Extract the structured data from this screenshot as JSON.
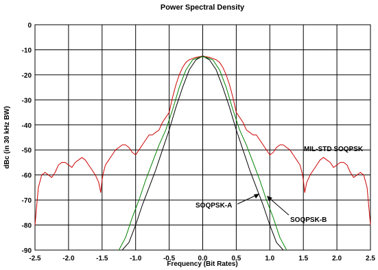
{
  "chart_data": {
    "type": "line",
    "title": "Power Spectral Density",
    "xlabel": "Frequency (Bit Rates)",
    "ylabel": "dBc (in 30 kHz BW)",
    "xlim": [
      -2.5,
      2.5
    ],
    "ylim": [
      -90,
      0
    ],
    "xticks": [
      -2.5,
      -2.0,
      -1.5,
      -1.0,
      -0.5,
      0.0,
      0.5,
      1.0,
      1.5,
      2.0,
      2.5
    ],
    "xtick_labels": [
      "-2.5",
      "-2.0",
      "-1.5",
      "-1.0",
      "-0.5",
      "0.0",
      "0.5",
      "1.0",
      "1.5",
      "2.0",
      "2.5"
    ],
    "yticks": [
      0,
      -10,
      -20,
      -30,
      -40,
      -50,
      -60,
      -70,
      -80,
      -90
    ],
    "ytick_labels": [
      "0",
      "-10",
      "-20",
      "-30",
      "-40",
      "-50",
      "-60",
      "-70",
      "-80",
      "-90"
    ],
    "grid": true,
    "legend": "none",
    "series": [
      {
        "name": "MIL-STD SOQPSK",
        "color": "#cc0000",
        "x": [
          -2.5,
          -2.45,
          -2.4,
          -2.35,
          -2.3,
          -2.25,
          -2.2,
          -2.15,
          -2.1,
          -2.05,
          -2.0,
          -1.95,
          -1.9,
          -1.85,
          -1.8,
          -1.75,
          -1.7,
          -1.65,
          -1.6,
          -1.55,
          -1.52,
          -1.5,
          -1.48,
          -1.45,
          -1.4,
          -1.35,
          -1.3,
          -1.25,
          -1.2,
          -1.15,
          -1.1,
          -1.05,
          -1.0,
          -0.95,
          -0.9,
          -0.85,
          -0.8,
          -0.75,
          -0.7,
          -0.65,
          -0.6,
          -0.55,
          -0.5,
          -0.45,
          -0.4,
          -0.35,
          -0.3,
          -0.25,
          -0.2,
          -0.15,
          -0.1,
          -0.05,
          0.0,
          0.05,
          0.1,
          0.15,
          0.2,
          0.25,
          0.3,
          0.35,
          0.4,
          0.45,
          0.5,
          0.55,
          0.6,
          0.65,
          0.7,
          0.75,
          0.8,
          0.85,
          0.9,
          0.95,
          1.0,
          1.05,
          1.1,
          1.15,
          1.2,
          1.25,
          1.3,
          1.35,
          1.4,
          1.45,
          1.48,
          1.5,
          1.52,
          1.55,
          1.6,
          1.65,
          1.7,
          1.75,
          1.8,
          1.85,
          1.9,
          1.95,
          2.0,
          2.05,
          2.1,
          2.15,
          2.2,
          2.25,
          2.3,
          2.35,
          2.4,
          2.45,
          2.5
        ],
        "y": [
          -80,
          -65,
          -60,
          -59,
          -60,
          -61,
          -59,
          -56,
          -55,
          -55,
          -56,
          -57,
          -55,
          -54,
          -53,
          -54,
          -56,
          -58,
          -60,
          -63,
          -67,
          -62,
          -59,
          -56,
          -54,
          -52,
          -50,
          -49,
          -48,
          -48,
          -49,
          -51,
          -52,
          -50,
          -48,
          -46,
          -44,
          -44,
          -43,
          -42,
          -39,
          -37,
          -35,
          -29,
          -24,
          -20,
          -17,
          -15,
          -14,
          -13.5,
          -13,
          -12.8,
          -12.5,
          -12.8,
          -13,
          -13.5,
          -14,
          -15,
          -17,
          -20,
          -24,
          -29,
          -35,
          -37,
          -39,
          -42,
          -43,
          -44,
          -44,
          -46,
          -48,
          -50,
          -52,
          -51,
          -49,
          -48,
          -48,
          -49,
          -50,
          -52,
          -54,
          -56,
          -59,
          -62,
          -67,
          -63,
          -60,
          -58,
          -56,
          -54,
          -53,
          -54,
          -55,
          -57,
          -56,
          -55,
          -55,
          -56,
          -59,
          -61,
          -60,
          -59,
          -60,
          -65,
          -80
        ]
      },
      {
        "name": "SOQPSK-A",
        "color": "#000000",
        "x": [
          -1.2,
          -1.1,
          -1.0,
          -0.9,
          -0.8,
          -0.7,
          -0.6,
          -0.5,
          -0.4,
          -0.3,
          -0.2,
          -0.1,
          0.0,
          0.1,
          0.2,
          0.3,
          0.4,
          0.5,
          0.6,
          0.7,
          0.8,
          0.9,
          1.0,
          1.1,
          1.2
        ],
        "y": [
          -92,
          -87,
          -80,
          -72,
          -65,
          -58,
          -50,
          -42,
          -33,
          -25,
          -18,
          -14,
          -12.5,
          -14,
          -18,
          -25,
          -33,
          -42,
          -50,
          -58,
          -65,
          -72,
          -80,
          -87,
          -92
        ]
      },
      {
        "name": "SOQPSK-B",
        "color": "#008000",
        "x": [
          -1.25,
          -1.15,
          -1.05,
          -0.95,
          -0.85,
          -0.75,
          -0.65,
          -0.55,
          -0.45,
          -0.35,
          -0.25,
          -0.15,
          -0.05,
          0.0,
          0.05,
          0.15,
          0.25,
          0.35,
          0.45,
          0.55,
          0.65,
          0.75,
          0.85,
          0.95,
          1.05,
          1.15,
          1.25
        ],
        "y": [
          -92,
          -85,
          -77,
          -70,
          -62,
          -55,
          -48,
          -42,
          -34,
          -25,
          -18,
          -14,
          -13,
          -12.8,
          -13,
          -14,
          -18,
          -25,
          -34,
          -42,
          -48,
          -55,
          -62,
          -70,
          -77,
          -85,
          -92
        ]
      }
    ],
    "annotations": [
      "MIL-STD SOQPSK",
      "SOQPSK-A",
      "SOQPSK-B"
    ]
  }
}
